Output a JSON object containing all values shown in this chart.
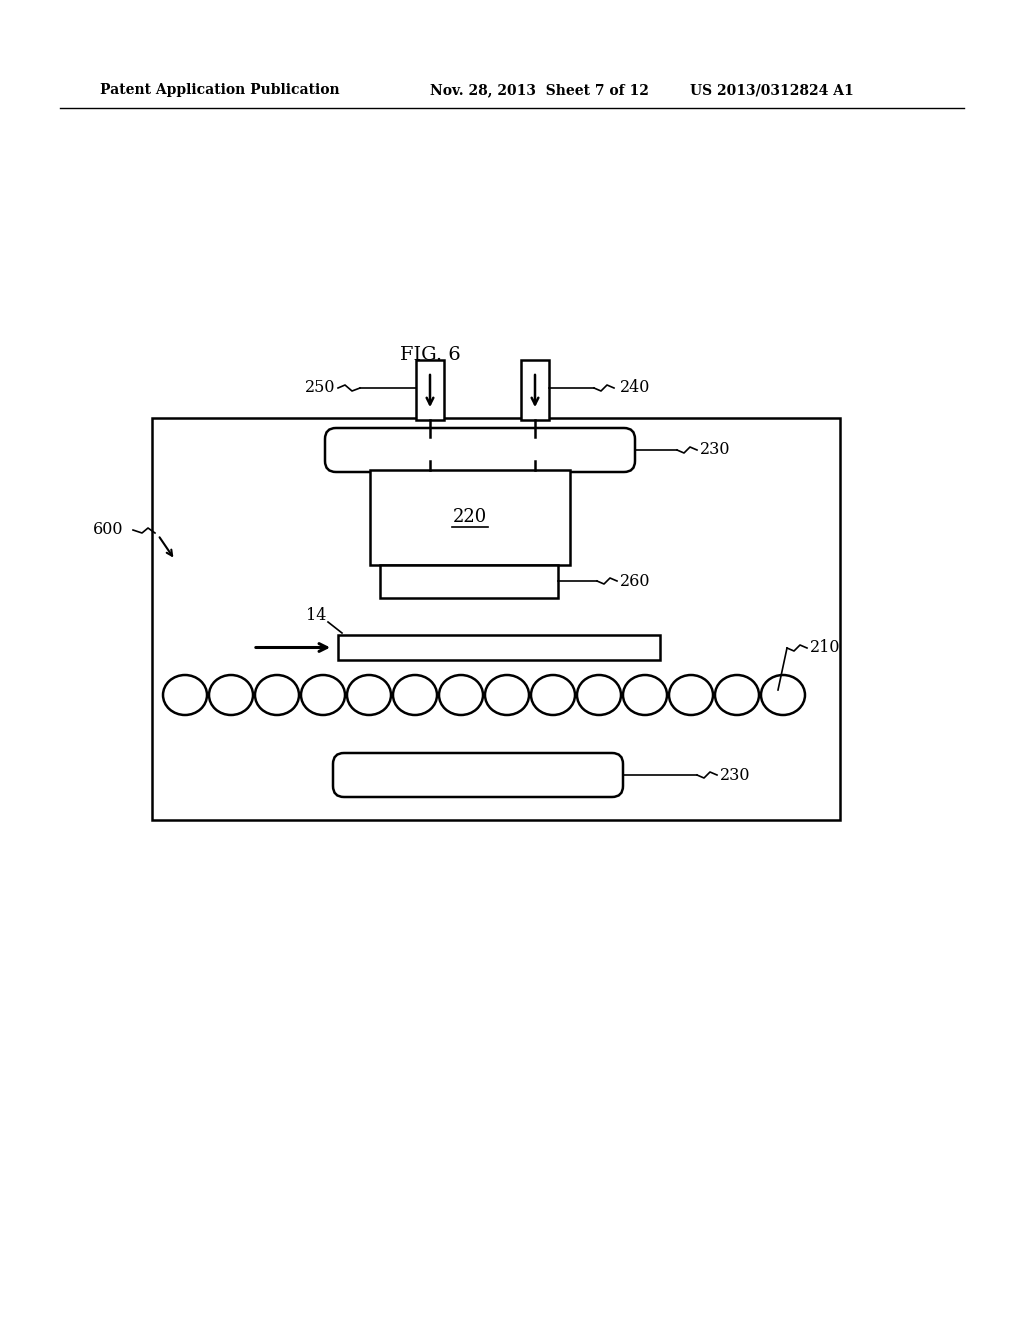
{
  "bg_color": "#ffffff",
  "line_color": "#000000",
  "header_left": "Patent Application Publication",
  "header_mid": "Nov. 28, 2013  Sheet 7 of 12",
  "header_right": "US 2013/0312824 A1",
  "fig_label": "FIG. 6"
}
